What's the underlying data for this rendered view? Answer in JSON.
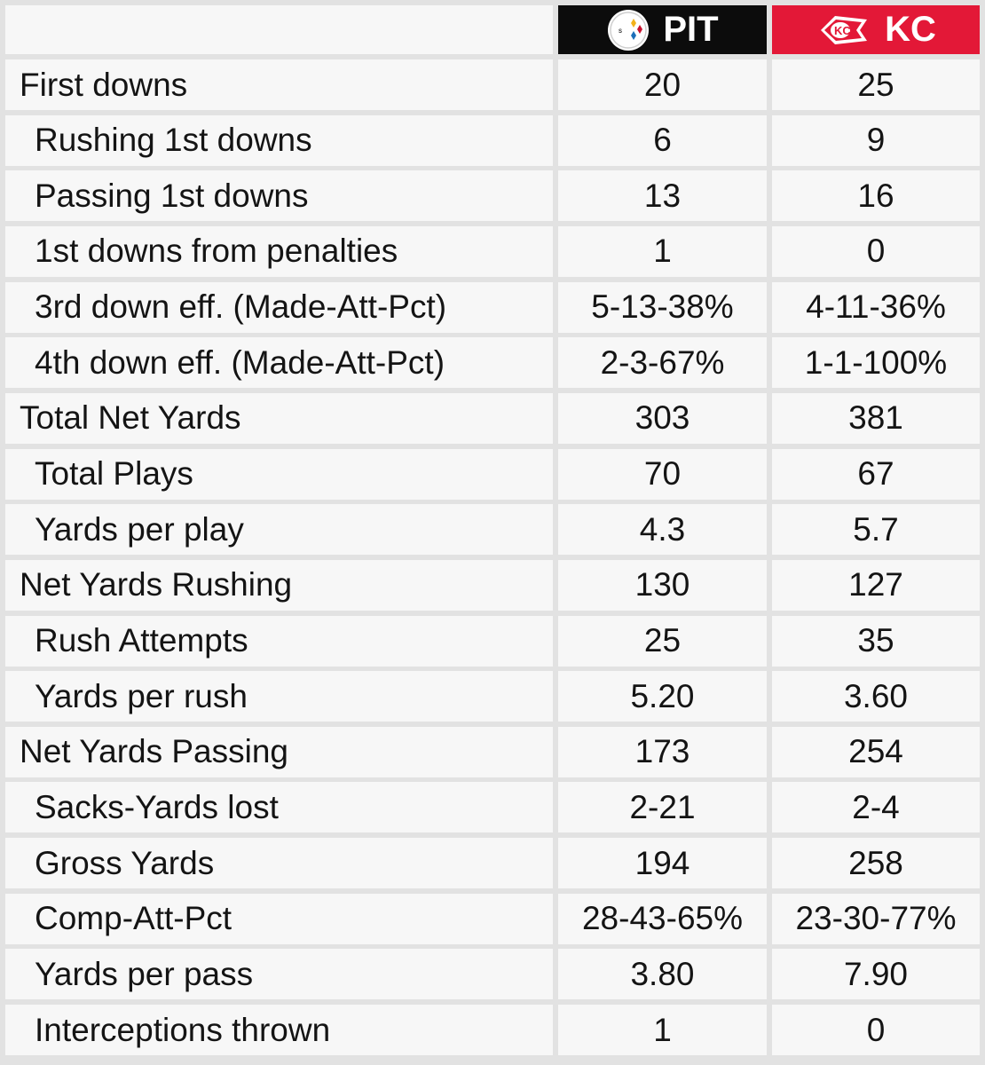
{
  "header": {
    "teams": [
      {
        "abbr": "PIT",
        "logo": "steelers-logo-icon",
        "bg": "#0c0c0c"
      },
      {
        "abbr": "KC",
        "logo": "chiefs-logo-icon",
        "bg": "#e31837"
      }
    ]
  },
  "rows": [
    {
      "label": "First downs",
      "pit": "20",
      "kc": "25",
      "sub": false
    },
    {
      "label": "Rushing 1st downs",
      "pit": "6",
      "kc": "9",
      "sub": true
    },
    {
      "label": "Passing 1st downs",
      "pit": "13",
      "kc": "16",
      "sub": true
    },
    {
      "label": "1st downs from penalties",
      "pit": "1",
      "kc": "0",
      "sub": true
    },
    {
      "label": "3rd down eff. (Made-Att-Pct)",
      "pit": "5-13-38%",
      "kc": "4-11-36%",
      "sub": true
    },
    {
      "label": "4th down eff. (Made-Att-Pct)",
      "pit": "2-3-67%",
      "kc": "1-1-100%",
      "sub": true
    },
    {
      "label": "Total Net Yards",
      "pit": "303",
      "kc": "381",
      "sub": false
    },
    {
      "label": "Total Plays",
      "pit": "70",
      "kc": "67",
      "sub": true
    },
    {
      "label": "Yards per play",
      "pit": "4.3",
      "kc": "5.7",
      "sub": true
    },
    {
      "label": "Net Yards Rushing",
      "pit": "130",
      "kc": "127",
      "sub": false
    },
    {
      "label": "Rush Attempts",
      "pit": "25",
      "kc": "35",
      "sub": true
    },
    {
      "label": "Yards per rush",
      "pit": "5.20",
      "kc": "3.60",
      "sub": true
    },
    {
      "label": "Net Yards Passing",
      "pit": "173",
      "kc": "254",
      "sub": false
    },
    {
      "label": "Sacks-Yards lost",
      "pit": "2-21",
      "kc": "2-4",
      "sub": true
    },
    {
      "label": "Gross Yards",
      "pit": "194",
      "kc": "258",
      "sub": true
    },
    {
      "label": "Comp-Att-Pct",
      "pit": "28-43-65%",
      "kc": "23-30-77%",
      "sub": true
    },
    {
      "label": "Yards per pass",
      "pit": "3.80",
      "kc": "7.90",
      "sub": true
    },
    {
      "label": "Interceptions thrown",
      "pit": "1",
      "kc": "0",
      "sub": true
    }
  ]
}
